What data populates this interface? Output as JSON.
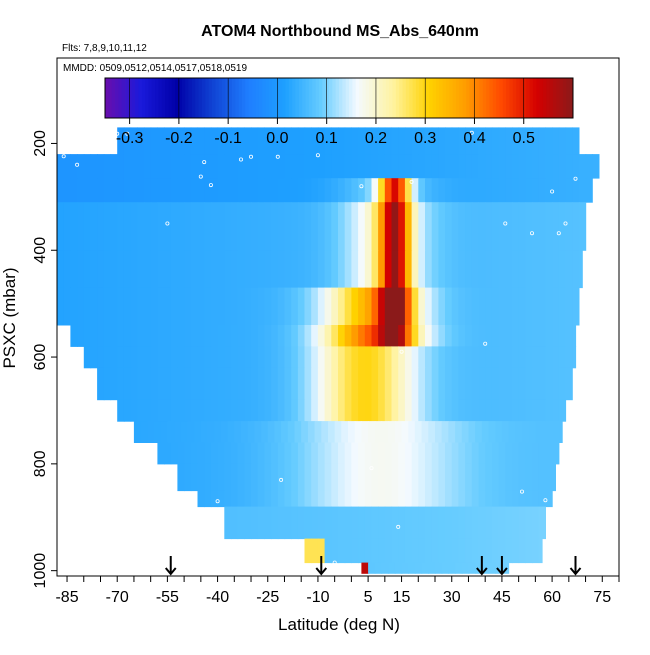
{
  "chart_data": {
    "type": "heatmap",
    "title": "ATOM4 Northbound MS_Abs_640nm",
    "subtitle_flights": "Flts: 7,8,9,10,11,12",
    "subtitle_dates": "MMDD: 0509,0512,0514,0517,0518,0519",
    "xlabel": "Latitude (deg N)",
    "ylabel": "PSXC (mbar)",
    "xlim": [
      -88,
      80
    ],
    "ylim": [
      1010,
      40
    ],
    "x_ticks": [
      -85,
      -70,
      -55,
      -40,
      -25,
      -10,
      5,
      15,
      30,
      45,
      60,
      75
    ],
    "y_ticks": [
      200,
      400,
      600,
      800,
      1000
    ],
    "colorbar": {
      "min": -0.35,
      "max": 0.6,
      "ticks": [
        -0.3,
        -0.2,
        -0.1,
        0.0,
        0.1,
        0.2,
        0.3,
        0.4,
        0.5
      ],
      "tick_labels": [
        "-0.3",
        "-0.2",
        "-0.1",
        "0.0",
        "0.1",
        "0.2",
        "0.3",
        "0.4",
        "0.5"
      ],
      "colors": [
        "#6a0dad",
        "#1a1adb",
        "#0000a8",
        "#1044d4",
        "#1f7fff",
        "#1ea0ff",
        "#66ccff",
        "#f4faff",
        "#fff3a0",
        "#ffd200",
        "#ff9d00",
        "#ff4a00",
        "#d40000",
        "#8b1a1a"
      ]
    },
    "arrows_latitude": [
      -54,
      -9,
      39,
      45,
      67
    ],
    "profile_bands": [
      {
        "p_top": 170,
        "p_bot": 220,
        "lat_min": -70,
        "lat_max": 68
      },
      {
        "p_top": 220,
        "p_bot": 265,
        "lat_min": -88,
        "lat_max": 74
      },
      {
        "p_top": 265,
        "p_bot": 310,
        "lat_min": -88,
        "lat_max": 72
      },
      {
        "p_top": 310,
        "p_bot": 400,
        "lat_min": -88,
        "lat_max": 70
      },
      {
        "p_top": 400,
        "p_bot": 470,
        "lat_min": -88,
        "lat_max": 69
      },
      {
        "p_top": 470,
        "p_bot": 540,
        "lat_min": -88,
        "lat_max": 68
      },
      {
        "p_top": 540,
        "p_bot": 580,
        "lat_min": -84,
        "lat_max": 67
      },
      {
        "p_top": 580,
        "p_bot": 620,
        "lat_min": -80,
        "lat_max": 67
      },
      {
        "p_top": 620,
        "p_bot": 680,
        "lat_min": -76,
        "lat_max": 66
      },
      {
        "p_top": 680,
        "p_bot": 720,
        "lat_min": -70,
        "lat_max": 64
      },
      {
        "p_top": 720,
        "p_bot": 760,
        "lat_min": -65,
        "lat_max": 63
      },
      {
        "p_top": 760,
        "p_bot": 800,
        "lat_min": -58,
        "lat_max": 62
      },
      {
        "p_top": 800,
        "p_bot": 850,
        "lat_min": -52,
        "lat_max": 61
      },
      {
        "p_top": 850,
        "p_bot": 880,
        "lat_min": -46,
        "lat_max": 60
      },
      {
        "p_top": 880,
        "p_bot": 940,
        "lat_min": -38,
        "lat_max": 58
      },
      {
        "p_top": 940,
        "p_bot": 985,
        "lat_min": -14,
        "lat_max": 57
      },
      {
        "p_top": 985,
        "p_bot": 1005,
        "lat_min": 3,
        "lat_max": 47
      }
    ],
    "plume_core": {
      "lat_min": 8,
      "lat_max": 18,
      "p_top": 265,
      "p_bot": 560,
      "value": 0.45
    },
    "plume_outer": {
      "lat_min": -18,
      "lat_max": 22,
      "p_top": 470,
      "p_bot": 720,
      "value": 0.3
    },
    "near_surface_hotspot": {
      "lat_min": 2,
      "lat_max": 5,
      "p_top": 985,
      "p_bot": 1005,
      "value": 0.55
    }
  }
}
